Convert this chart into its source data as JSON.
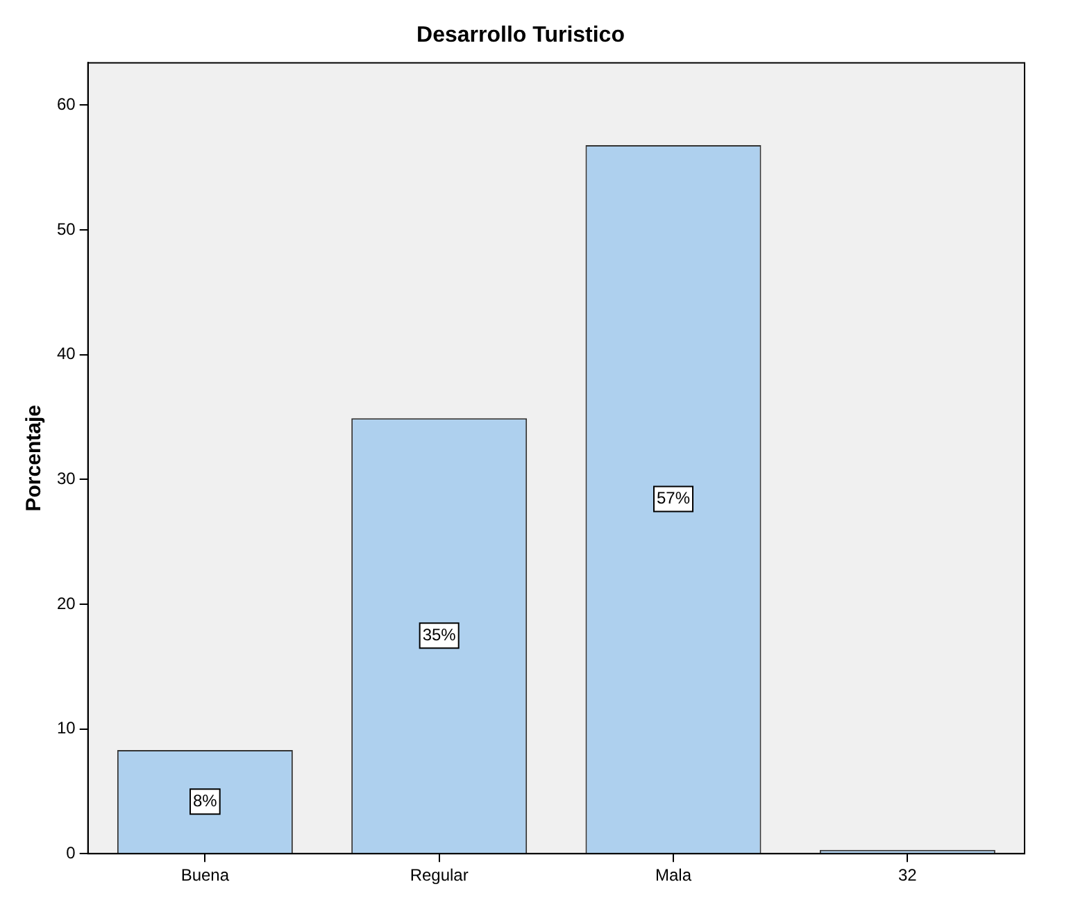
{
  "chart_data": {
    "type": "bar",
    "title": "Desarrollo Turistico",
    "ylabel": "Porcentaje",
    "categories": [
      "Buena",
      "Regular",
      "Mala",
      "32"
    ],
    "values": [
      8.3,
      34.9,
      56.8,
      0.3
    ],
    "value_labels": [
      "8%",
      "35%",
      "57%",
      null
    ],
    "color": "#aed0ee",
    "ylim": [
      0,
      63.4
    ],
    "yticks": [
      0,
      10,
      20,
      30,
      40,
      50,
      60
    ],
    "grid": false,
    "legend": false
  }
}
